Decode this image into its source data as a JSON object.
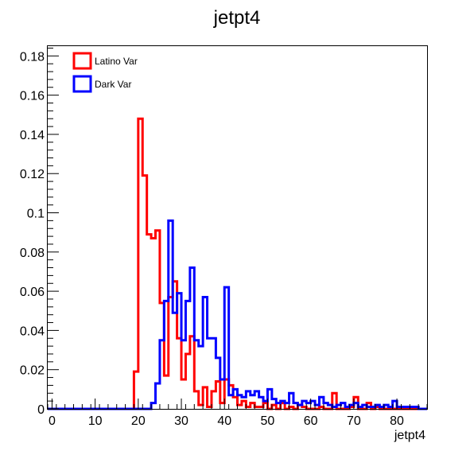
{
  "chart_data": {
    "type": "histogram",
    "title": "jetpt4",
    "xlabel": "jetpt4",
    "ylabel": "",
    "xlim": [
      -1,
      87
    ],
    "ylim": [
      0,
      0.185
    ],
    "bin_width": 1,
    "x_ticks": [
      0,
      10,
      20,
      30,
      40,
      50,
      60,
      70,
      80
    ],
    "x_tick_labels": [
      "0",
      "10",
      "20",
      "30",
      "40",
      "50",
      "60",
      "70",
      "80"
    ],
    "y_ticks": [
      0,
      0.02,
      0.04,
      0.06,
      0.08,
      0.1,
      0.12,
      0.14,
      0.16,
      0.18
    ],
    "y_tick_labels": [
      "0",
      "0.02",
      "0.04",
      "0.06",
      "0.08",
      "0.1",
      "0.12",
      "0.14",
      "0.16",
      "0.18"
    ],
    "legend_position": "top-left",
    "series": [
      {
        "name": "Latino Var",
        "color": "#ff0000",
        "bin_low_edges": [
          19,
          20,
          21,
          22,
          23,
          24,
          25,
          26,
          27,
          28,
          29,
          30,
          31,
          32,
          33,
          34,
          35,
          36,
          37,
          38,
          39,
          40,
          41,
          42,
          43,
          44,
          45,
          46,
          47,
          48,
          49,
          50,
          51,
          52,
          53,
          54,
          55,
          56,
          57,
          58,
          59,
          60,
          61,
          62,
          63,
          64,
          65,
          66,
          67,
          68,
          69,
          70,
          71,
          72,
          73,
          74,
          75,
          76,
          77,
          78,
          79,
          80,
          81,
          82,
          83,
          84,
          85,
          86
        ],
        "values": [
          0.019,
          0.148,
          0.119,
          0.089,
          0.087,
          0.091,
          0.054,
          0.017,
          0.057,
          0.065,
          0.036,
          0.015,
          0.028,
          0.037,
          0.009,
          0.002,
          0.011,
          0.001,
          0.009,
          0.014,
          0.003,
          0.015,
          0.012,
          0.006,
          0.002,
          0.004,
          0.001,
          0.003,
          0.001,
          0.001,
          0.003,
          0,
          0.002,
          0,
          0.003,
          0,
          0.001,
          0,
          0.002,
          0.001,
          0,
          0,
          0,
          0.001,
          0,
          0,
          0.008,
          0,
          0,
          0,
          0.001,
          0.006,
          0,
          0,
          0.003,
          0,
          0.001,
          0,
          0,
          0,
          0,
          0,
          0,
          0,
          0,
          0,
          0,
          0
        ]
      },
      {
        "name": "Dark Var",
        "color": "#0000ff",
        "bin_low_edges": [
          19,
          20,
          21,
          22,
          23,
          24,
          25,
          26,
          27,
          28,
          29,
          30,
          31,
          32,
          33,
          34,
          35,
          36,
          37,
          38,
          39,
          40,
          41,
          42,
          43,
          44,
          45,
          46,
          47,
          48,
          49,
          50,
          51,
          52,
          53,
          54,
          55,
          56,
          57,
          58,
          59,
          60,
          61,
          62,
          63,
          64,
          65,
          66,
          67,
          68,
          69,
          70,
          71,
          72,
          73,
          74,
          75,
          76,
          77,
          78,
          79,
          80,
          81,
          82,
          83,
          84,
          85,
          86
        ],
        "values": [
          0,
          0,
          0,
          0,
          0.003,
          0.013,
          0.035,
          0.055,
          0.096,
          0.049,
          0.059,
          0.035,
          0.055,
          0.072,
          0.035,
          0.032,
          0.057,
          0.036,
          0.036,
          0.026,
          0.015,
          0.062,
          0.007,
          0.01,
          0.007,
          0.006,
          0.009,
          0.007,
          0.009,
          0.006,
          0.004,
          0.01,
          0.005,
          0.003,
          0.004,
          0.003,
          0.008,
          0.003,
          0.002,
          0.004,
          0.003,
          0.004,
          0.002,
          0.006,
          0.003,
          0.002,
          0.001,
          0.002,
          0.003,
          0.001,
          0.002,
          0.003,
          0.001,
          0.002,
          0.001,
          0.001,
          0.002,
          0.001,
          0.002,
          0.001,
          0.004,
          0.001,
          0.001,
          0.001,
          0.001,
          0.001,
          0,
          0
        ]
      }
    ]
  }
}
